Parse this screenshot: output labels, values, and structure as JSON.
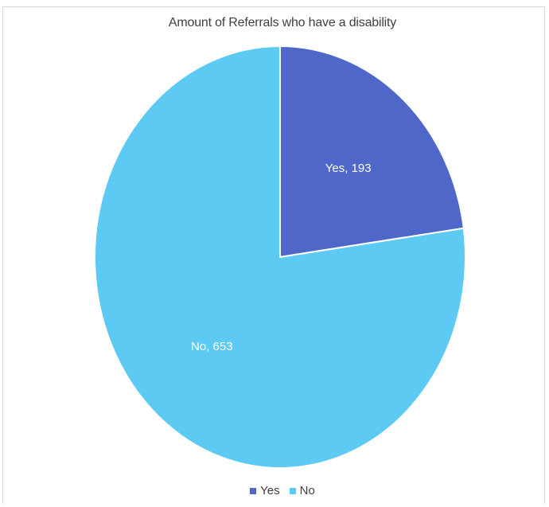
{
  "chart_data": {
    "type": "pie",
    "title": "Amount of Referrals who have a disability",
    "categories": [
      "Yes",
      "No"
    ],
    "values": [
      193,
      653
    ],
    "data_labels": [
      "Yes, 193",
      "No, 653"
    ],
    "colors": [
      "#4f67c9",
      "#5ccaf3"
    ],
    "legend": [
      "Yes",
      "No"
    ],
    "legend_position": "bottom"
  }
}
